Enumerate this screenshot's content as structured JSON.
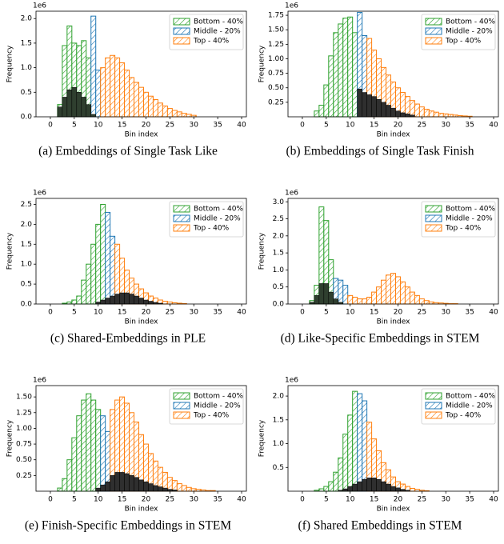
{
  "chart_data": [
    {
      "type": "bar",
      "caption": "(a)  Embeddings of Single Task Like",
      "x_label": "Bin index",
      "y_label": "Frequency",
      "y_offset_label": "1e6",
      "xlim": [
        -3,
        41
      ],
      "xticks": [
        0,
        5,
        10,
        15,
        20,
        25,
        30,
        35,
        40
      ],
      "ylim": [
        0,
        2.15
      ],
      "yticks": [
        {
          "value": 0,
          "label": "0.0"
        },
        0.5,
        {
          "value": 1,
          "label": "1.0"
        },
        1.5,
        {
          "value": 2,
          "label": "2.0"
        }
      ],
      "legend": "upper right",
      "series": [
        {
          "name": "Bottom - 40%",
          "color": "#2ca02c",
          "hatch": true,
          "x": [
            2,
            3,
            4,
            5,
            6,
            7,
            8
          ],
          "values": [
            0.25,
            1.45,
            1.85,
            1.5,
            1.45,
            1.55,
            1.2
          ]
        },
        {
          "name": "Middle - 20%",
          "color": "#1f77b4",
          "hatch": true,
          "x": [
            9,
            10
          ],
          "values": [
            2.05,
            0.95
          ]
        },
        {
          "name": "Top - 40%",
          "color": "#ff7f0e",
          "hatch": true,
          "x": [
            11,
            12,
            13,
            14,
            15,
            16,
            17,
            18,
            19,
            20,
            21,
            22,
            23,
            24,
            25,
            26,
            27,
            28,
            29,
            30
          ],
          "values": [
            1.0,
            1.2,
            1.25,
            1.2,
            1.1,
            0.95,
            0.8,
            0.7,
            0.6,
            0.5,
            0.42,
            0.35,
            0.28,
            0.22,
            0.17,
            0.13,
            0.1,
            0.07,
            0.05,
            0.03
          ]
        },
        {
          "color": "#2f3f2f",
          "hatch": false,
          "x": [
            2,
            3,
            4,
            5,
            6,
            7,
            8,
            9
          ],
          "values": [
            0.2,
            0.4,
            0.55,
            0.6,
            0.5,
            0.4,
            0.25,
            0.05
          ]
        }
      ]
    },
    {
      "type": "bar",
      "caption": "(b)  Embeddings of Single Task Finish",
      "x_label": "Bin index",
      "y_label": "Frequency",
      "y_offset_label": "1e6",
      "xlim": [
        -3,
        41
      ],
      "xticks": [
        0,
        5,
        10,
        15,
        20,
        25,
        30,
        35,
        40
      ],
      "ylim": [
        0,
        1.82
      ],
      "yticks": [
        0.25,
        {
          "value": 0.5,
          "label": "0.50"
        },
        0.75,
        {
          "value": 1,
          "label": "1.00"
        },
        1.25,
        {
          "value": 1.5,
          "label": "1.50"
        },
        1.75
      ],
      "legend": "upper right",
      "series": [
        {
          "name": "Bottom - 40%",
          "color": "#2ca02c",
          "hatch": true,
          "x": [
            3,
            4,
            5,
            6,
            7,
            8,
            9,
            10,
            11
          ],
          "values": [
            0.1,
            0.2,
            0.55,
            1.05,
            1.45,
            1.6,
            1.7,
            1.72,
            1.45
          ]
        },
        {
          "name": "Middle - 20%",
          "color": "#1f77b4",
          "hatch": true,
          "x": [
            12,
            13
          ],
          "values": [
            1.8,
            1.4
          ]
        },
        {
          "name": "Top - 40%",
          "color": "#ff7f0e",
          "hatch": true,
          "x": [
            14,
            15,
            16,
            17,
            18,
            19,
            20,
            21,
            22,
            23,
            24,
            25,
            26,
            27,
            28,
            29,
            30,
            31,
            32,
            33,
            34,
            35
          ],
          "values": [
            1.35,
            1.15,
            1.0,
            0.85,
            0.72,
            0.6,
            0.5,
            0.42,
            0.35,
            0.28,
            0.22,
            0.17,
            0.13,
            0.1,
            0.08,
            0.06,
            0.05,
            0.04,
            0.03,
            0.02,
            0.015,
            0.01
          ]
        },
        {
          "color": "#2f2f2f",
          "hatch": false,
          "x": [
            12,
            13,
            14,
            15,
            16,
            17,
            18,
            19,
            20,
            21,
            22,
            23
          ],
          "values": [
            0.48,
            0.42,
            0.38,
            0.35,
            0.3,
            0.25,
            0.2,
            0.15,
            0.1,
            0.07,
            0.05,
            0.03
          ]
        }
      ]
    },
    {
      "type": "bar",
      "caption": "(c)  Shared-Embeddings in PLE",
      "x_label": "Bin index",
      "y_label": "Frequency",
      "y_offset_label": "1e6",
      "xlim": [
        -3,
        41
      ],
      "xticks": [
        0,
        5,
        10,
        15,
        20,
        25,
        30,
        35,
        40
      ],
      "ylim": [
        0,
        2.65
      ],
      "yticks": [
        {
          "value": 0,
          "label": "0.0"
        },
        0.5,
        {
          "value": 1,
          "label": "1.0"
        },
        1.5,
        {
          "value": 2,
          "label": "2.0"
        },
        2.5
      ],
      "legend": "upper right",
      "series": [
        {
          "name": "Bottom - 40%",
          "color": "#2ca02c",
          "hatch": true,
          "x": [
            3,
            4,
            5,
            6,
            7,
            8,
            9,
            10,
            11
          ],
          "values": [
            0.02,
            0.05,
            0.1,
            0.2,
            0.6,
            1.0,
            1.5,
            2.0,
            2.5
          ]
        },
        {
          "name": "Middle - 20%",
          "color": "#1f77b4",
          "hatch": true,
          "x": [
            12,
            13
          ],
          "values": [
            2.3,
            1.7
          ]
        },
        {
          "name": "Top - 40%",
          "color": "#ff7f0e",
          "hatch": true,
          "x": [
            14,
            15,
            16,
            17,
            18,
            19,
            20,
            21,
            22,
            23,
            24,
            25,
            26,
            27,
            28
          ],
          "values": [
            1.5,
            1.15,
            0.85,
            0.65,
            0.5,
            0.38,
            0.28,
            0.2,
            0.15,
            0.1,
            0.07,
            0.05,
            0.03,
            0.02,
            0.01
          ]
        },
        {
          "color": "#2f2f2f",
          "hatch": false,
          "x": [
            10,
            11,
            12,
            13,
            14,
            15,
            16,
            17,
            18,
            19,
            20,
            21,
            22,
            23
          ],
          "values": [
            0.05,
            0.1,
            0.15,
            0.2,
            0.25,
            0.28,
            0.28,
            0.25,
            0.2,
            0.15,
            0.1,
            0.07,
            0.04,
            0.02
          ]
        }
      ]
    },
    {
      "type": "bar",
      "caption": "(d)  Like-Specific Embeddings in STEM",
      "x_label": "Bin index",
      "y_label": "Frequency",
      "y_offset_label": "1e6",
      "xlim": [
        -3,
        41
      ],
      "xticks": [
        0,
        5,
        10,
        15,
        20,
        25,
        30,
        35,
        40
      ],
      "ylim": [
        0,
        3.1
      ],
      "yticks": [
        {
          "value": 0,
          "label": "0.0"
        },
        0.5,
        {
          "value": 1,
          "label": "1.0"
        },
        1.5,
        {
          "value": 2,
          "label": "2.0"
        },
        2.5,
        {
          "value": 3,
          "label": "3.0"
        }
      ],
      "legend": "upper right",
      "series": [
        {
          "name": "Bottom - 40%",
          "color": "#2ca02c",
          "hatch": true,
          "x": [
            2,
            3,
            4,
            5,
            6
          ],
          "values": [
            0.1,
            0.55,
            2.85,
            2.45,
            1.3
          ]
        },
        {
          "name": "Middle - 20%",
          "color": "#1f77b4",
          "hatch": true,
          "x": [
            7,
            8,
            9
          ],
          "values": [
            0.75,
            0.7,
            0.55
          ]
        },
        {
          "name": "Top - 40%",
          "color": "#ff7f0e",
          "hatch": true,
          "x": [
            10,
            11,
            12,
            13,
            14,
            15,
            16,
            17,
            18,
            19,
            20,
            21,
            22,
            23,
            24,
            25,
            26,
            27,
            28,
            29,
            30,
            31,
            32
          ],
          "values": [
            0.25,
            0.2,
            0.15,
            0.15,
            0.2,
            0.35,
            0.5,
            0.7,
            0.85,
            0.9,
            0.8,
            0.65,
            0.5,
            0.35,
            0.25,
            0.15,
            0.1,
            0.06,
            0.04,
            0.03,
            0.02,
            0.01,
            0.01
          ]
        },
        {
          "color": "#2f3f2f",
          "hatch": false,
          "x": [
            2,
            3,
            4,
            5,
            6,
            7,
            8
          ],
          "values": [
            0.05,
            0.25,
            0.6,
            0.6,
            0.35,
            0.15,
            0.05
          ]
        }
      ]
    },
    {
      "type": "bar",
      "caption": "(e)  Finish-Specific Embeddings in STEM",
      "x_label": "Bin index",
      "y_label": "Frequency",
      "y_offset_label": "1e6",
      "xlim": [
        -3,
        41
      ],
      "xticks": [
        0,
        5,
        10,
        15,
        20,
        25,
        30,
        35,
        40
      ],
      "ylim": [
        0,
        1.68
      ],
      "yticks": [
        0.25,
        {
          "value": 0.5,
          "label": "0.50"
        },
        0.75,
        {
          "value": 1,
          "label": "1.00"
        },
        1.25,
        {
          "value": 1.5,
          "label": "1.50"
        }
      ],
      "legend": "upper right",
      "series": [
        {
          "name": "Bottom - 40%",
          "color": "#2ca02c",
          "hatch": true,
          "x": [
            2,
            3,
            4,
            5,
            6,
            7,
            8,
            9,
            10
          ],
          "values": [
            0.05,
            0.2,
            0.5,
            0.85,
            1.2,
            1.45,
            1.55,
            1.45,
            1.3
          ]
        },
        {
          "name": "Middle - 20%",
          "color": "#1f77b4",
          "hatch": true,
          "x": [
            11,
            12
          ],
          "values": [
            1.2,
            0.95
          ]
        },
        {
          "name": "Top - 40%",
          "color": "#ff7f0e",
          "hatch": true,
          "x": [
            13,
            14,
            15,
            16,
            17,
            18,
            19,
            20,
            21,
            22,
            23,
            24,
            25,
            26,
            27,
            28,
            29,
            30,
            31,
            32,
            33,
            34
          ],
          "values": [
            1.3,
            1.45,
            1.5,
            1.4,
            1.25,
            1.1,
            0.9,
            0.75,
            0.6,
            0.48,
            0.38,
            0.3,
            0.22,
            0.17,
            0.12,
            0.09,
            0.06,
            0.04,
            0.03,
            0.02,
            0.01,
            0.01
          ]
        },
        {
          "color": "#2f2f2f",
          "hatch": false,
          "x": [
            10,
            11,
            12,
            13,
            14,
            15,
            16,
            17,
            18,
            19,
            20,
            21,
            22,
            23,
            24,
            25,
            26
          ],
          "values": [
            0.05,
            0.1,
            0.15,
            0.25,
            0.3,
            0.3,
            0.28,
            0.25,
            0.22,
            0.18,
            0.15,
            0.12,
            0.09,
            0.07,
            0.05,
            0.03,
            0.02
          ]
        }
      ]
    },
    {
      "type": "bar",
      "caption": "(f)  Shared Embeddings in STEM",
      "x_label": "Bin index",
      "y_label": "Frequency",
      "y_offset_label": "1e6",
      "xlim": [
        -3,
        41
      ],
      "xticks": [
        0,
        5,
        10,
        15,
        20,
        25,
        30,
        35,
        40
      ],
      "ylim": [
        0,
        2.22
      ],
      "yticks": [
        0.5,
        {
          "value": 1,
          "label": "1.0"
        },
        1.5,
        {
          "value": 2,
          "label": "2.0"
        }
      ],
      "legend": "upper right",
      "series": [
        {
          "name": "Bottom - 40%",
          "color": "#2ca02c",
          "hatch": true,
          "x": [
            3,
            4,
            5,
            6,
            7,
            8,
            9,
            10,
            11
          ],
          "values": [
            0.02,
            0.05,
            0.1,
            0.2,
            0.4,
            0.7,
            1.2,
            1.6,
            2.1
          ]
        },
        {
          "name": "Middle - 20%",
          "color": "#1f77b4",
          "hatch": true,
          "x": [
            12,
            13
          ],
          "values": [
            2.05,
            1.9
          ]
        },
        {
          "name": "Top - 40%",
          "color": "#ff7f0e",
          "hatch": true,
          "x": [
            14,
            15,
            16,
            17,
            18,
            19,
            20,
            21,
            22,
            23,
            24,
            25,
            26
          ],
          "values": [
            1.45,
            1.1,
            0.85,
            0.6,
            0.45,
            0.3,
            0.2,
            0.15,
            0.1,
            0.06,
            0.04,
            0.02,
            0.01
          ]
        },
        {
          "color": "#2f2f2f",
          "hatch": false,
          "x": [
            8,
            9,
            10,
            11,
            12,
            13,
            14,
            15,
            16,
            17,
            18,
            19,
            20,
            21,
            22
          ],
          "values": [
            0.02,
            0.05,
            0.1,
            0.15,
            0.2,
            0.25,
            0.28,
            0.28,
            0.25,
            0.2,
            0.15,
            0.1,
            0.07,
            0.04,
            0.02
          ]
        }
      ]
    }
  ]
}
